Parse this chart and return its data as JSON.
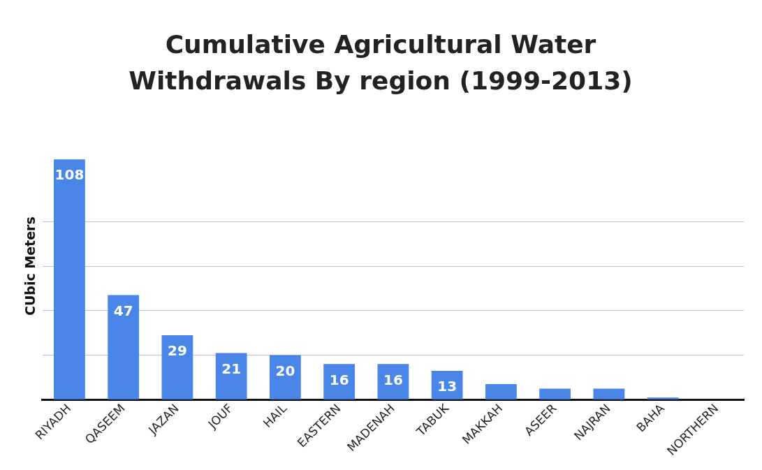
{
  "chart_data": {
    "type": "bar",
    "title": "Cumulative Agricultural Water Withdrawals By region (1999-2013)",
    "ylabel": "CUbic Meters",
    "categories": [
      "RIYADH",
      "QASEEM",
      "JAZAN",
      "JOUF",
      "HAIL",
      "EASTERN",
      "MADENAH",
      "TABUK",
      "MAKKAH",
      "ASEER",
      "NAJRAN",
      "BAHA",
      "NORTHERN"
    ],
    "values": [
      108,
      47,
      29,
      21,
      20,
      16,
      16,
      13,
      7,
      5,
      5,
      1,
      0
    ],
    "value_labels": [
      "108",
      "47",
      "29",
      "21",
      "20",
      "16",
      "16",
      "13",
      null,
      null,
      null,
      null,
      null
    ],
    "color": "#4a86e8",
    "yticks": [
      {
        "value": 0,
        "label": null
      },
      {
        "value": 20,
        "label": null
      },
      {
        "value": 40,
        "label": null
      },
      {
        "value": 60,
        "label": null
      },
      {
        "value": 80,
        "label": null
      }
    ],
    "grid": "y",
    "tick_labels": "x",
    "legend": false
  }
}
